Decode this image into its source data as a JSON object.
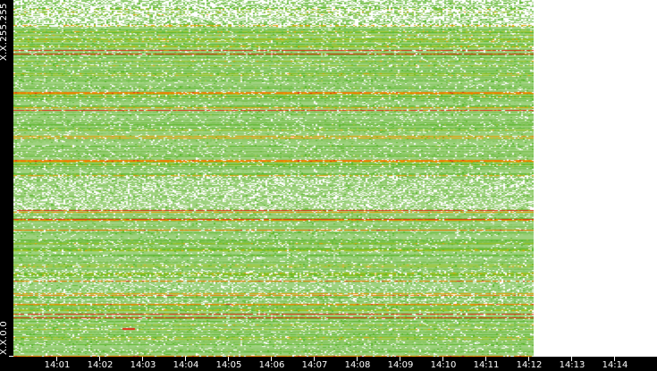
{
  "chart_data": {
    "type": "heatmap",
    "y_labels": {
      "top": "X.X.255.255",
      "bottom": "X.X.0.0"
    },
    "x_ticks": [
      "14:01",
      "14:02",
      "14:03",
      "14:04",
      "14:05",
      "14:06",
      "14:07",
      "14:08",
      "14:09",
      "14:10",
      "14:11",
      "14:12",
      "14:13",
      "14:14"
    ],
    "x_data_end": "14:12",
    "colors": {
      "empty": "#ffffff",
      "low": "#9fd27f",
      "mid": "#5cb82e",
      "high": "#e8a000",
      "max": "#e02a10",
      "axis_bg": "#000000"
    }
  }
}
